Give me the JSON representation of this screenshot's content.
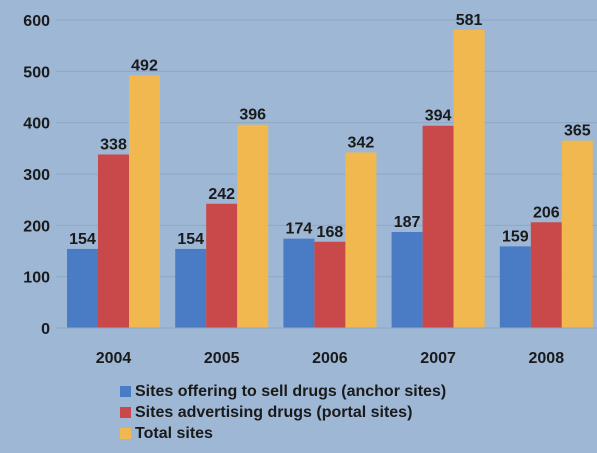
{
  "chart_data": {
    "type": "bar",
    "title": "",
    "xlabel": "",
    "ylabel": "",
    "categories": [
      "2004",
      "2005",
      "2006",
      "2007",
      "2008"
    ],
    "ylim": [
      0,
      600
    ],
    "yticks": [
      0,
      100,
      200,
      300,
      400,
      500,
      600
    ],
    "grid": true,
    "legend_position": "bottom",
    "series": [
      {
        "name": "Sites offering to sell drugs (anchor sites)",
        "color": "#4a7cc6",
        "values": [
          154,
          154,
          174,
          187,
          159
        ]
      },
      {
        "name": "Sites advertising drugs (portal sites)",
        "color": "#c9484a",
        "values": [
          338,
          242,
          168,
          394,
          206
        ]
      },
      {
        "name": "Total sites",
        "color": "#f0b84e",
        "values": [
          492,
          396,
          342,
          581,
          365
        ]
      }
    ]
  }
}
